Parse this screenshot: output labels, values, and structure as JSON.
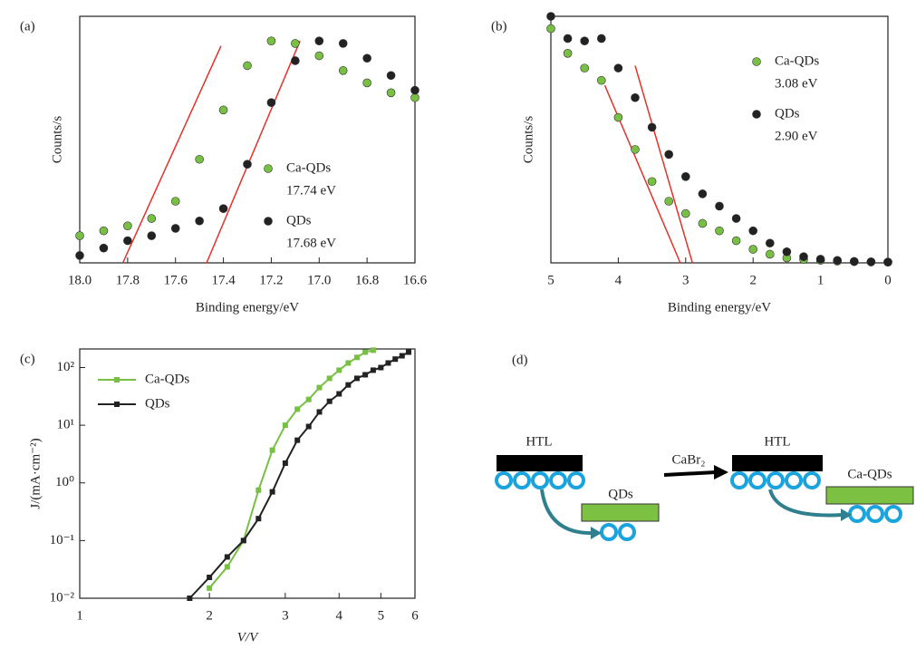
{
  "chart_data": [
    {
      "type": "scatter",
      "panel": "(a)",
      "x_label": "Binding energy/eV",
      "y_label": "Counts/s",
      "xlim": [
        18.0,
        16.6
      ],
      "ylim": [
        0,
        1
      ],
      "xticks": [
        {
          "value": 18.0,
          "label": "18.0"
        },
        17.8,
        17.6,
        17.4,
        17.2,
        {
          "value": 17.0,
          "label": "17.0"
        },
        16.8,
        16.6
      ],
      "legend": "lower right",
      "x": [
        18.0,
        17.9,
        17.8,
        17.7,
        17.6,
        17.5,
        17.4,
        17.3,
        17.2,
        17.1,
        17.0,
        16.9,
        16.8,
        16.7,
        16.6
      ],
      "series": [
        {
          "name": "Ca-QDs",
          "label": "17.74 eV",
          "color": "#77c043",
          "values": [
            0.11,
            0.13,
            0.15,
            0.18,
            0.25,
            0.42,
            0.62,
            0.8,
            0.9,
            0.89,
            0.84,
            0.78,
            0.73,
            0.69,
            0.67
          ]
        },
        {
          "name": "QDs",
          "label": "17.68 eV",
          "color": "#222222",
          "values": [
            0.03,
            0.06,
            0.09,
            0.11,
            0.14,
            0.17,
            0.22,
            0.4,
            0.65,
            0.82,
            0.9,
            0.89,
            0.83,
            0.76,
            0.7
          ]
        }
      ],
      "fit_lines": [
        {
          "color": "#e8302a",
          "x": [
            17.82,
            17.41
          ],
          "y": [
            0,
            0.88
          ]
        },
        {
          "color": "#e8302a",
          "x": [
            17.47,
            17.08
          ],
          "y": [
            0,
            0.9
          ]
        }
      ]
    },
    {
      "type": "scatter",
      "panel": "(b)",
      "x_label": "Binding energy/eV",
      "y_label": "Counts/s",
      "xlim": [
        5,
        0
      ],
      "ylim": [
        0,
        1
      ],
      "xticks": [
        5,
        4,
        3,
        2,
        1,
        0
      ],
      "legend": "upper right",
      "x": [
        5,
        4.75,
        4.5,
        4.25,
        4,
        3.75,
        3.5,
        3.25,
        3,
        2.75,
        2.5,
        2.25,
        2,
        1.75,
        1.5,
        1.25,
        1,
        0.75,
        0.5,
        0.25,
        0
      ],
      "series": [
        {
          "name": "Ca-QDs",
          "label": "3.08 eV",
          "color": "#77c043",
          "values": [
            0.95,
            0.85,
            0.79,
            0.74,
            0.59,
            0.46,
            0.33,
            0.25,
            0.2,
            0.16,
            0.13,
            0.09,
            0.055,
            0.035,
            0.02,
            0.014,
            0.01,
            0.007,
            0.005,
            0.004,
            0.003
          ]
        },
        {
          "name": "QDs",
          "label": "2.90 eV",
          "color": "#222222",
          "values": [
            1.0,
            0.91,
            0.9,
            0.91,
            0.79,
            0.67,
            0.55,
            0.44,
            0.35,
            0.28,
            0.23,
            0.18,
            0.13,
            0.08,
            0.045,
            0.025,
            0.015,
            0.01,
            0.006,
            0.004,
            0.003
          ]
        }
      ],
      "fit_lines": [
        {
          "color": "#e8302a",
          "x": [
            4.2,
            3.08
          ],
          "y": [
            0.72,
            0
          ]
        },
        {
          "color": "#e8302a",
          "x": [
            3.75,
            2.9
          ],
          "y": [
            0.8,
            0
          ]
        }
      ]
    },
    {
      "type": "line",
      "panel": "(c)",
      "x_label": "V/V",
      "y_label": "J/(mA·cm⁻²)",
      "xscale": "log",
      "yscale": "log",
      "xlim": [
        1,
        6
      ],
      "ylim": [
        0.01,
        210
      ],
      "xticks": [
        1,
        2,
        3,
        4,
        5,
        6
      ],
      "yticks": [
        {
          "value": 0.01,
          "label": "10⁻²"
        },
        {
          "value": 0.1,
          "label": "10⁻¹"
        },
        {
          "value": 1,
          "label": "10⁰"
        },
        {
          "value": 10,
          "label": "10¹"
        },
        {
          "value": 100,
          "label": "10²"
        }
      ],
      "legend": "upper left",
      "series": [
        {
          "name": "Ca-QDs",
          "color": "#77c043",
          "x": [
            2.0,
            2.2,
            2.4,
            2.6,
            2.8,
            3.0,
            3.2,
            3.4,
            3.6,
            3.8,
            4.0,
            4.2,
            4.4,
            4.6,
            4.8
          ],
          "values": [
            0.015,
            0.035,
            0.1,
            0.75,
            3.7,
            10,
            19,
            28,
            45,
            65,
            90,
            120,
            150,
            185,
            200
          ]
        },
        {
          "name": "QDs",
          "color": "#222222",
          "x": [
            1.8,
            2.0,
            2.2,
            2.4,
            2.6,
            2.8,
            3.0,
            3.2,
            3.4,
            3.6,
            3.8,
            4.0,
            4.2,
            4.4,
            4.6,
            4.8,
            5.0,
            5.2,
            5.4,
            5.6,
            5.8
          ],
          "values": [
            0.01,
            0.023,
            0.052,
            0.1,
            0.24,
            0.7,
            2.2,
            5.5,
            9.5,
            17,
            26,
            35,
            50,
            65,
            75,
            90,
            100,
            120,
            140,
            160,
            185
          ]
        }
      ]
    }
  ],
  "diagram": {
    "panel": "(d)",
    "htl_left": "HTL",
    "qds": "QDs",
    "reagent": "CaBr₂",
    "htl_right": "HTL",
    "ca_qds": "Ca-QDs"
  }
}
